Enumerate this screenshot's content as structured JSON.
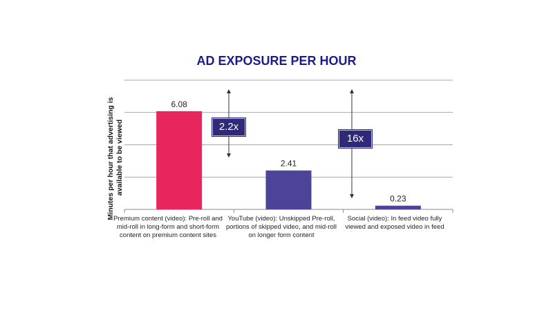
{
  "colors": {
    "title": "#1f1a8c",
    "premium": "#e8265e",
    "youtube": "#4b4499",
    "social": "#4b4499",
    "callout_bg": "#2e2a78",
    "grid": "#8a8a8a"
  },
  "callouts": [
    {
      "label": "2.2x"
    },
    {
      "label": "16x"
    }
  ],
  "chart_data": {
    "type": "bar",
    "title": "AD EXPOSURE PER HOUR",
    "ylabel": "Minutes per hour that advertising is available to be viewed",
    "ylabel_lines": [
      "Minutes per hour that advertising is",
      "available to be viewed"
    ],
    "ylim": [
      0,
      8
    ],
    "grid": true,
    "categories": [
      "Premium content (video): Pre-roll and mid-roll in long-form and short-form content on premium content sites",
      "YouTube (video): Unskipped Pre-roll, portions of skipped video, and mid-roll on longer form content",
      "Social (video): In feed video fully viewed and exposed video in feed"
    ],
    "category_lines": [
      [
        "Premium content (video): Pre-roll and",
        "mid-roll in long-form and short-form",
        "content on premium content sites"
      ],
      [
        "YouTube (video): Unskipped Pre-roll,",
        "portions of skipped video, and mid-roll",
        "on longer form content"
      ],
      [
        "Social (video): In feed video fully",
        "viewed and exposed video in feed"
      ]
    ],
    "values": [
      6.08,
      2.41,
      0.23
    ],
    "value_labels": [
      "6.08",
      "2.41",
      "0.23"
    ]
  }
}
